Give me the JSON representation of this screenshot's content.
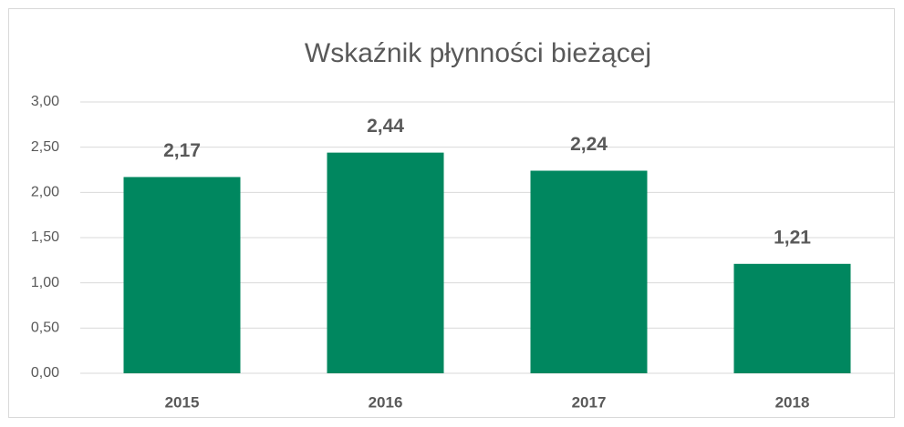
{
  "chart_data": {
    "type": "bar",
    "title": "Wskaźnik płynności bieżącej",
    "categories": [
      "2015",
      "2016",
      "2017",
      "2018"
    ],
    "values": [
      2.17,
      2.44,
      2.24,
      1.21
    ],
    "value_labels": [
      "2,17",
      "2,44",
      "2,24",
      "1,21"
    ],
    "color": "#00875f",
    "ylim": [
      0,
      3
    ],
    "yticks": [
      {
        "value": 0,
        "label": "0,00"
      },
      {
        "value": 0.5,
        "label": "0,50"
      },
      {
        "value": 1,
        "label": "1,00"
      },
      {
        "value": 1.5,
        "label": "1,50"
      },
      {
        "value": 2,
        "label": "2,00"
      },
      {
        "value": 2.5,
        "label": "2,50"
      },
      {
        "value": 3,
        "label": "3,00"
      }
    ],
    "grid": true
  }
}
